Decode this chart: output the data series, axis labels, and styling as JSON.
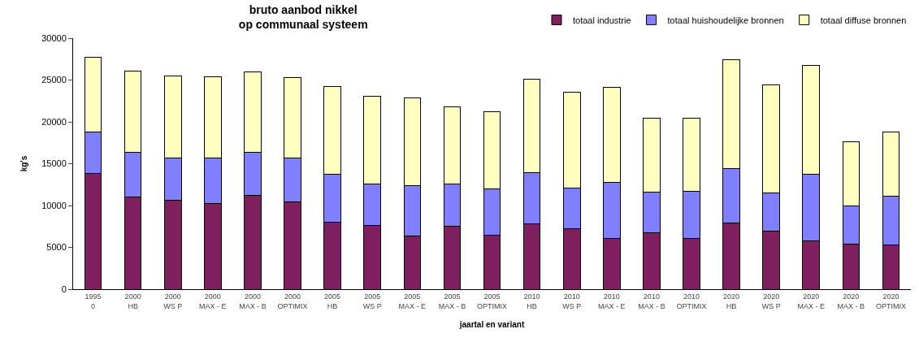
{
  "chart_data": {
    "type": "bar",
    "stacked": true,
    "title": "bruto aanbod nikkel\nop communaal systeem",
    "xlabel": "jaartal en variant",
    "ylabel": "kg's",
    "categories": [
      "1995\n0",
      "2000\nHB",
      "2000\nWS P",
      "2000\nMAX - E",
      "2000\nMAX - B",
      "2000\nOPTIMIX",
      "2005\nHB",
      "2005\nWS P",
      "2005\nMAX - E",
      "2005\nMAX - B",
      "2005\nOPTIMIX",
      "2010\nHB",
      "2010\nWS P",
      "2010\nMAX - E",
      "2010\nMAX - B",
      "2010\nOPTIMIX",
      "2020\nHB",
      "2020\nWS P",
      "2020\nMAX - E",
      "2020\nMAX - B",
      "2020\nOPTIMIX"
    ],
    "series": [
      {
        "name": "totaal industrie",
        "color": "#7f1f5f",
        "values": [
          13800,
          11000,
          10600,
          10200,
          11200,
          10400,
          8000,
          7600,
          6400,
          7500,
          6500,
          7800,
          7200,
          6100,
          6700,
          6100,
          7900,
          6900,
          5800,
          5400,
          5300
        ]
      },
      {
        "name": "totaal huishoudelijke bronnen",
        "color": "#8080ff",
        "values": [
          5000,
          5400,
          5100,
          5500,
          5200,
          5300,
          5700,
          5000,
          6000,
          5100,
          5500,
          6100,
          4900,
          6700,
          4900,
          5600,
          6500,
          4600,
          7900,
          4600,
          5800
        ]
      },
      {
        "name": "totaal diffuse bronnen",
        "color": "#ffffc0",
        "values": [
          8900,
          9700,
          9800,
          9700,
          9600,
          9600,
          10500,
          10500,
          10500,
          9200,
          9200,
          11200,
          11400,
          11300,
          8800,
          8700,
          13000,
          12900,
          13000,
          7600,
          7700
        ]
      }
    ],
    "ylim": [
      0,
      30000
    ],
    "yticks": [
      0,
      5000,
      10000,
      15000,
      20000,
      25000,
      30000
    ],
    "legend": "top right"
  }
}
